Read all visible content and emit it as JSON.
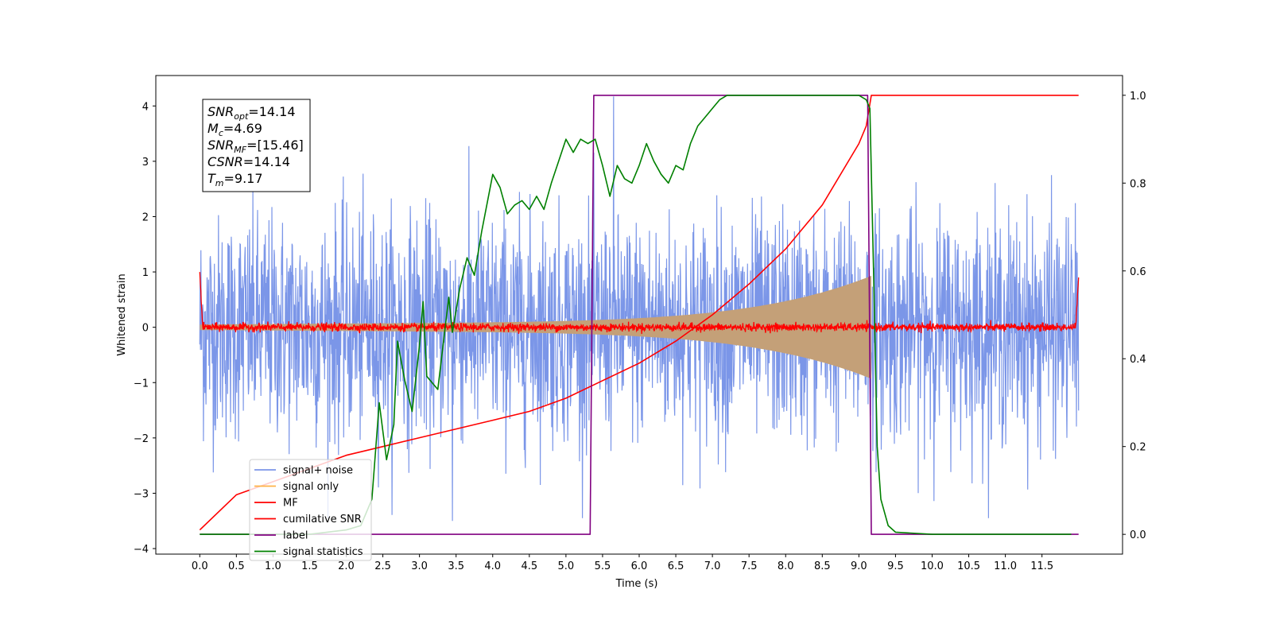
{
  "chart_data": {
    "type": "line",
    "xlabel": "Time (s)",
    "ylabel": "Whitened strain",
    "xlim": [
      -0.6,
      12.6
    ],
    "ylim": [
      -4.1,
      4.55
    ],
    "ylim_right": [
      -0.045,
      1.045
    ],
    "x_ticks": [
      0.0,
      0.5,
      1.0,
      1.5,
      2.0,
      2.5,
      3.0,
      3.5,
      4.0,
      4.5,
      5.0,
      5.5,
      6.0,
      6.5,
      7.0,
      7.5,
      8.0,
      8.5,
      9.0,
      9.5,
      10.0,
      10.5,
      11.0,
      11.5
    ],
    "x_tick_labels": [
      "0.0",
      "0.5",
      "1.0",
      "1.5",
      "2.0",
      "2.5",
      "3.0",
      "3.5",
      "4.0",
      "4.5",
      "5.0",
      "5.5",
      "6.0",
      "6.5",
      "7.0",
      "7.5",
      "8.0",
      "8.5",
      "9.0",
      "9.5",
      "10.0",
      "10.5",
      "11.0",
      "11.5"
    ],
    "y_ticks": [
      -4,
      -3,
      -2,
      -1,
      0,
      1,
      2,
      3,
      4
    ],
    "y_tick_labels": [
      "−4",
      "−3",
      "−2",
      "−1",
      "0",
      "1",
      "2",
      "3",
      "4"
    ],
    "y_right_ticks": [
      0.0,
      0.2,
      0.4,
      0.6,
      0.8,
      1.0
    ],
    "y_right_tick_labels": [
      "0.0",
      "0.2",
      "0.4",
      "0.6",
      "0.8",
      "1.0"
    ],
    "legend_placement": "lower-left",
    "annotation": {
      "lines": [
        {
          "base": "SNR",
          "sub": "opt",
          "value": "=14.14"
        },
        {
          "base": "M",
          "sub": "c",
          "value": "=4.69"
        },
        {
          "base": "SNR",
          "sub": "MF",
          "value": "=[15.46]"
        },
        {
          "base": "CSNR",
          "sub": "",
          "value": "=14.14"
        },
        {
          "base": "T",
          "sub": "m",
          "value": "=9.17"
        }
      ]
    },
    "series": [
      {
        "name": "signal+ noise",
        "color": "#7b96e8",
        "axis": "left",
        "kind": "noise",
        "x_range": [
          0.0,
          12.0
        ],
        "amplitude_typical": 1.0,
        "peak_values": [
          4.17,
          -3.7
        ]
      },
      {
        "name": "signal only",
        "color": "#ffb347",
        "axis": "left",
        "kind": "chirp",
        "x_range": [
          0.0,
          9.17
        ],
        "amplitude_start": 0.05,
        "amplitude_end": 0.85
      },
      {
        "name": "MF",
        "color": "#ff0000",
        "axis": "left",
        "kind": "noise",
        "x_range": [
          0.0,
          12.0
        ],
        "amplitude_typical": 0.06,
        "edge_values": [
          1.0,
          0.9
        ]
      },
      {
        "name": "cumilative SNR",
        "color": "#ff0000",
        "axis": "right",
        "x": [
          0.0,
          0.5,
          1.0,
          1.5,
          2.0,
          2.5,
          3.0,
          3.5,
          4.0,
          4.5,
          5.0,
          5.5,
          6.0,
          6.5,
          7.0,
          7.5,
          8.0,
          8.5,
          9.0,
          9.1,
          9.17,
          10.0,
          11.0,
          12.0
        ],
        "y": [
          0.01,
          0.09,
          0.12,
          0.15,
          0.18,
          0.2,
          0.22,
          0.24,
          0.26,
          0.28,
          0.31,
          0.35,
          0.39,
          0.44,
          0.5,
          0.57,
          0.65,
          0.75,
          0.89,
          0.93,
          1.0,
          1.0,
          1.0,
          1.0
        ]
      },
      {
        "name": "label",
        "color": "#800080",
        "axis": "right",
        "x": [
          0.0,
          5.33,
          5.38,
          9.12,
          9.17,
          12.0
        ],
        "y": [
          0.0,
          0.0,
          1.0,
          1.0,
          0.0,
          0.0
        ]
      },
      {
        "name": "signal statistics",
        "color": "#008000",
        "axis": "right",
        "x": [
          0.0,
          0.5,
          1.0,
          1.5,
          2.0,
          2.2,
          2.35,
          2.45,
          2.55,
          2.65,
          2.7,
          2.8,
          2.9,
          3.0,
          3.05,
          3.1,
          3.25,
          3.4,
          3.45,
          3.55,
          3.65,
          3.75,
          3.85,
          4.0,
          4.1,
          4.2,
          4.3,
          4.4,
          4.5,
          4.6,
          4.7,
          4.8,
          4.9,
          5.0,
          5.1,
          5.2,
          5.3,
          5.4,
          5.5,
          5.6,
          5.7,
          5.8,
          5.9,
          6.0,
          6.1,
          6.2,
          6.3,
          6.4,
          6.5,
          6.6,
          6.7,
          6.8,
          6.9,
          7.0,
          7.1,
          7.2,
          7.3,
          7.4,
          7.5,
          8.0,
          8.5,
          8.8,
          9.0,
          9.1,
          9.15,
          9.2,
          9.25,
          9.3,
          9.4,
          9.5,
          10.0,
          11.0,
          11.9
        ],
        "y": [
          0.0,
          0.0,
          0.0,
          0.0,
          0.01,
          0.02,
          0.08,
          0.3,
          0.17,
          0.25,
          0.44,
          0.35,
          0.28,
          0.43,
          0.53,
          0.36,
          0.33,
          0.54,
          0.46,
          0.56,
          0.63,
          0.59,
          0.69,
          0.82,
          0.79,
          0.73,
          0.75,
          0.76,
          0.74,
          0.77,
          0.74,
          0.8,
          0.85,
          0.9,
          0.87,
          0.9,
          0.89,
          0.9,
          0.84,
          0.77,
          0.84,
          0.81,
          0.8,
          0.84,
          0.89,
          0.85,
          0.82,
          0.8,
          0.84,
          0.83,
          0.89,
          0.93,
          0.95,
          0.97,
          0.99,
          1.0,
          1.0,
          1.0,
          1.0,
          1.0,
          1.0,
          1.0,
          1.0,
          0.99,
          0.97,
          0.6,
          0.2,
          0.08,
          0.02,
          0.005,
          0.0,
          0.0,
          0.0
        ]
      }
    ]
  }
}
